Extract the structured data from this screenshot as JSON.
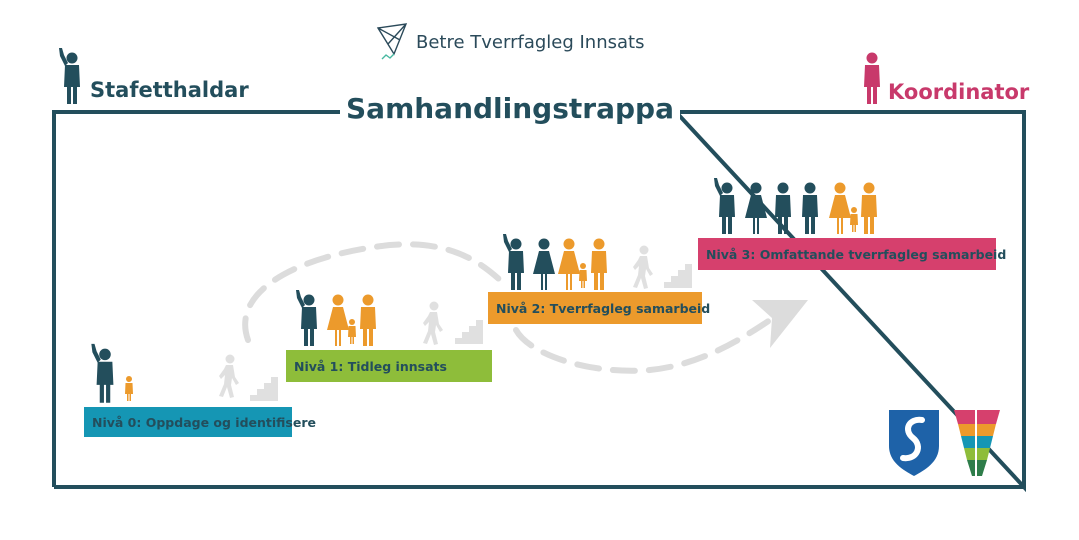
{
  "header": {
    "brand_text": "Betre Tverrfagleg Innsats"
  },
  "roles": {
    "left": "Stafetthaldar",
    "right": "Koordinator"
  },
  "title": "Samhandlingstrappa",
  "levels": [
    {
      "label": "Nivå 0: Oppdage og identifisere",
      "color": "#1596b4"
    },
    {
      "label": "Nivå 1: Tidleg innsats",
      "color": "#8ebd3a"
    },
    {
      "label": "Nivå 2: Tverrfagleg samarbeid",
      "color": "#ec9a2c"
    },
    {
      "label": "Nivå 3: Omfattande tverrfagleg samarbeid",
      "color": "#d6406d"
    }
  ],
  "colors": {
    "professional": "#234e5c",
    "family": "#ec9a2c",
    "coordinator": "#c8396b",
    "frame": "#234e5c",
    "arrow": "#dcdcdc"
  },
  "icons": [
    "kite-icon",
    "person-waving-icon",
    "person-icon",
    "walking-stairs-icon",
    "family-icon",
    "crest-icon",
    "puzzle-logo-icon"
  ]
}
